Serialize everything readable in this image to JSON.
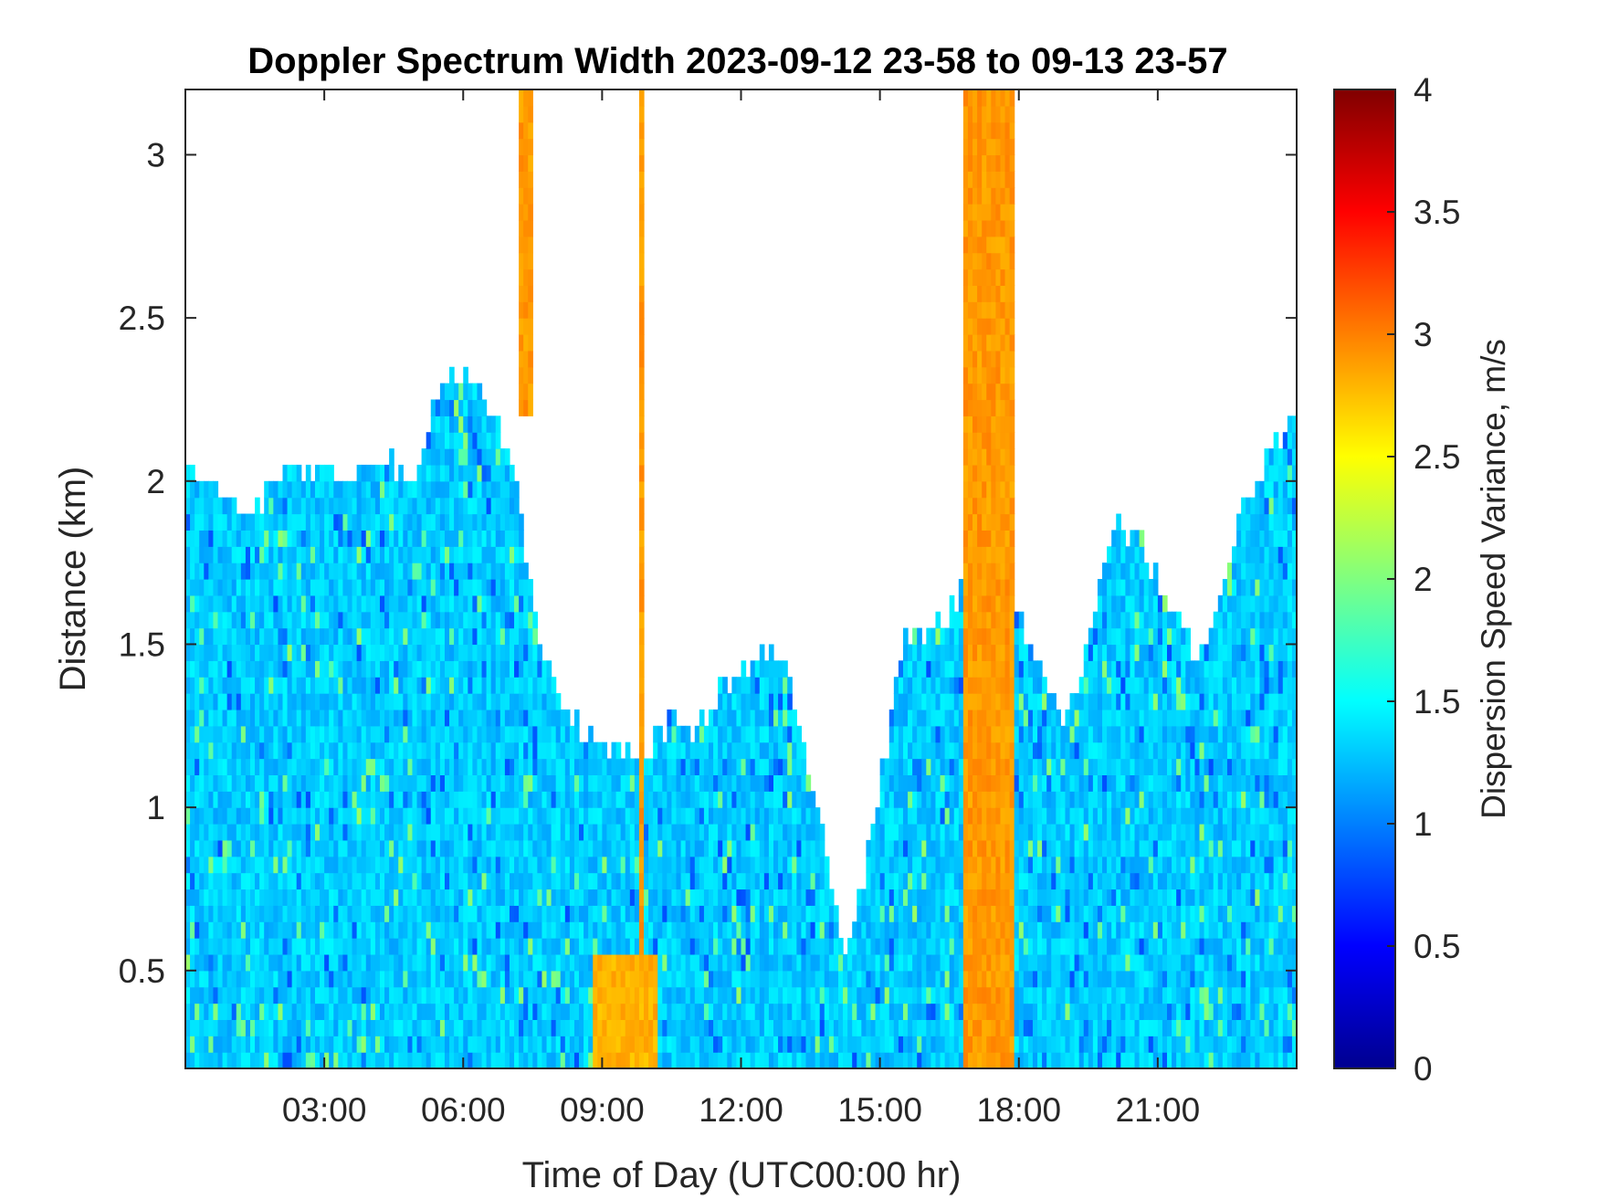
{
  "chart_data": {
    "type": "heatmap",
    "title": "Doppler Spectrum Width 2023-09-12 23-58 to 09-13 23-57",
    "xlabel": "Time of Day (UTC00:00 hr)",
    "ylabel": "Distance (km)",
    "colorbar_label": "Dispersion Speed Variance, m/s",
    "xlim_hours": [
      0,
      24
    ],
    "ylim_km": [
      0.2,
      3.2
    ],
    "clim": [
      0,
      4
    ],
    "colormap": "jet",
    "x_ticks": [
      {
        "value": 3,
        "label": "03:00"
      },
      {
        "value": 6,
        "label": "06:00"
      },
      {
        "value": 9,
        "label": "09:00"
      },
      {
        "value": 12,
        "label": "12:00"
      },
      {
        "value": 15,
        "label": "15:00"
      },
      {
        "value": 18,
        "label": "18:00"
      },
      {
        "value": 21,
        "label": "21:00"
      }
    ],
    "y_ticks": [
      {
        "value": 0.5,
        "label": "0.5"
      },
      {
        "value": 1,
        "label": "1"
      },
      {
        "value": 1.5,
        "label": "1.5"
      },
      {
        "value": 2,
        "label": "2"
      },
      {
        "value": 2.5,
        "label": "2.5"
      },
      {
        "value": 3,
        "label": "3"
      }
    ],
    "colorbar_ticks": [
      {
        "value": 0,
        "label": "0"
      },
      {
        "value": 0.5,
        "label": "0.5"
      },
      {
        "value": 1,
        "label": "1"
      },
      {
        "value": 1.5,
        "label": "1.5"
      },
      {
        "value": 2,
        "label": "2"
      },
      {
        "value": 2.5,
        "label": "2.5"
      },
      {
        "value": 3,
        "label": "3"
      },
      {
        "value": 3.5,
        "label": "3.5"
      },
      {
        "value": 4,
        "label": "4"
      }
    ],
    "grid": false,
    "background_color": "#ffffff",
    "signal_top_km": [
      [
        0,
        2.05
      ],
      [
        0.5,
        2.0
      ],
      [
        1,
        1.95
      ],
      [
        1.5,
        1.9
      ],
      [
        2,
        2.0
      ],
      [
        2.5,
        2.05
      ],
      [
        3,
        2.05
      ],
      [
        3.5,
        2.0
      ],
      [
        4,
        2.1
      ],
      [
        4.5,
        2.05
      ],
      [
        5,
        2.0
      ],
      [
        5.5,
        2.3
      ],
      [
        6,
        2.35
      ],
      [
        6.5,
        2.25
      ],
      [
        7,
        2.1
      ],
      [
        7.3,
        1.85
      ],
      [
        7.6,
        1.5
      ],
      [
        8,
        1.35
      ],
      [
        8.5,
        1.25
      ],
      [
        9,
        1.2
      ],
      [
        9.5,
        1.15
      ],
      [
        10,
        1.2
      ],
      [
        10.5,
        1.25
      ],
      [
        11,
        1.2
      ],
      [
        11.5,
        1.35
      ],
      [
        12,
        1.4
      ],
      [
        12.5,
        1.5
      ],
      [
        13,
        1.45
      ],
      [
        13.5,
        1.1
      ],
      [
        14,
        0.7
      ],
      [
        14.3,
        0.55
      ],
      [
        14.6,
        0.75
      ],
      [
        15,
        1.05
      ],
      [
        15.5,
        1.5
      ],
      [
        16,
        1.55
      ],
      [
        16.5,
        1.6
      ],
      [
        17,
        1.75
      ],
      [
        17.5,
        1.7
      ],
      [
        18,
        1.6
      ],
      [
        18.5,
        1.4
      ],
      [
        19,
        1.25
      ],
      [
        19.5,
        1.5
      ],
      [
        20,
        1.85
      ],
      [
        20.5,
        1.85
      ],
      [
        21,
        1.7
      ],
      [
        21.5,
        1.55
      ],
      [
        22,
        1.45
      ],
      [
        22.5,
        1.75
      ],
      [
        23,
        1.95
      ],
      [
        23.5,
        2.1
      ],
      [
        24,
        2.2
      ]
    ],
    "high_variance_bands": [
      {
        "start_h": 7.2,
        "end_h": 7.5,
        "bottom_km": 2.2,
        "top_km": 3.2,
        "value": 2.9
      },
      {
        "start_h": 8.8,
        "end_h": 10.2,
        "bottom_km": 0.2,
        "top_km": 0.55,
        "value": 2.8
      },
      {
        "start_h": 9.8,
        "end_h": 9.86,
        "bottom_km": 0.2,
        "top_km": 3.2,
        "value": 2.9
      },
      {
        "start_h": 16.8,
        "end_h": 17.9,
        "bottom_km": 0.2,
        "top_km": 3.2,
        "value": 2.9
      }
    ],
    "values_summary": {
      "boundary_layer_typical": 1.3,
      "high_variance": 2.9
    }
  }
}
